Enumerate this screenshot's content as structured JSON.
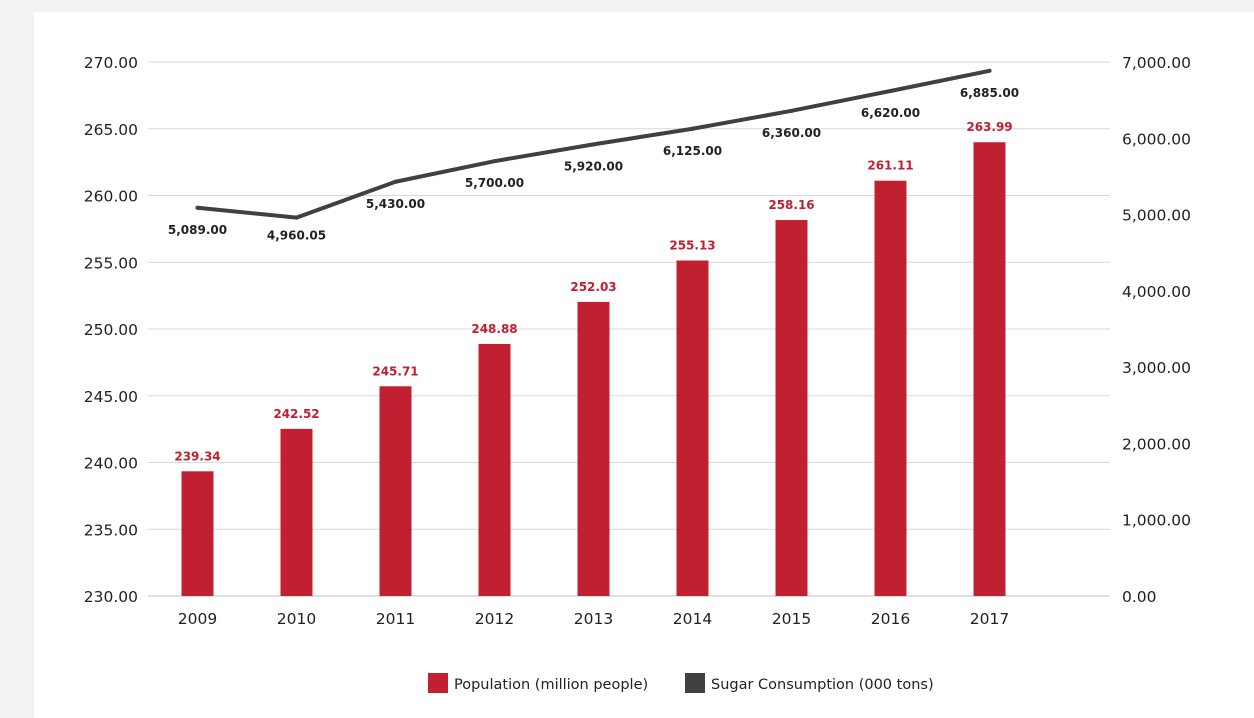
{
  "chart_data": {
    "type": "bar",
    "categories": [
      "2009",
      "2010",
      "2011",
      "2012",
      "2013",
      "2014",
      "2015",
      "2016",
      "2017"
    ],
    "series": [
      {
        "name": "Population (million people)",
        "type": "bar",
        "axis": "left",
        "color": "#c0202f",
        "values": [
          239.34,
          242.52,
          245.71,
          248.88,
          252.03,
          255.13,
          258.16,
          261.11,
          263.99
        ],
        "labels": [
          "239.34",
          "242.52",
          "245.71",
          "248.88",
          "252.03",
          "255.13",
          "258.16",
          "261.11",
          "263.99"
        ]
      },
      {
        "name": "Sugar Consumption (000 tons)",
        "type": "line",
        "axis": "right",
        "color": "#404040",
        "values": [
          5089.0,
          4960.05,
          5430.0,
          5700.0,
          5920.0,
          6125.0,
          6360.0,
          6620.0,
          6885.0
        ],
        "labels": [
          "5,089.00",
          "4,960.05",
          "5,430.00",
          "5,700.00",
          "5,920.00",
          "6,125.00",
          "6,360.00",
          "6,620.00",
          "6,885.00"
        ]
      }
    ],
    "y_left": {
      "range": [
        230,
        270
      ],
      "ticks": [
        "230.00",
        "235.00",
        "240.00",
        "245.00",
        "250.00",
        "255.00",
        "260.00",
        "265.00",
        "270.00"
      ]
    },
    "y_right": {
      "range": [
        0,
        7000
      ],
      "ticks": [
        "0.00",
        "1,000.00",
        "2,000.00",
        "3,000.00",
        "4,000.00",
        "5,000.00",
        "6,000.00",
        "7,000.00"
      ]
    },
    "grid": true,
    "legend": "bottom-center"
  }
}
